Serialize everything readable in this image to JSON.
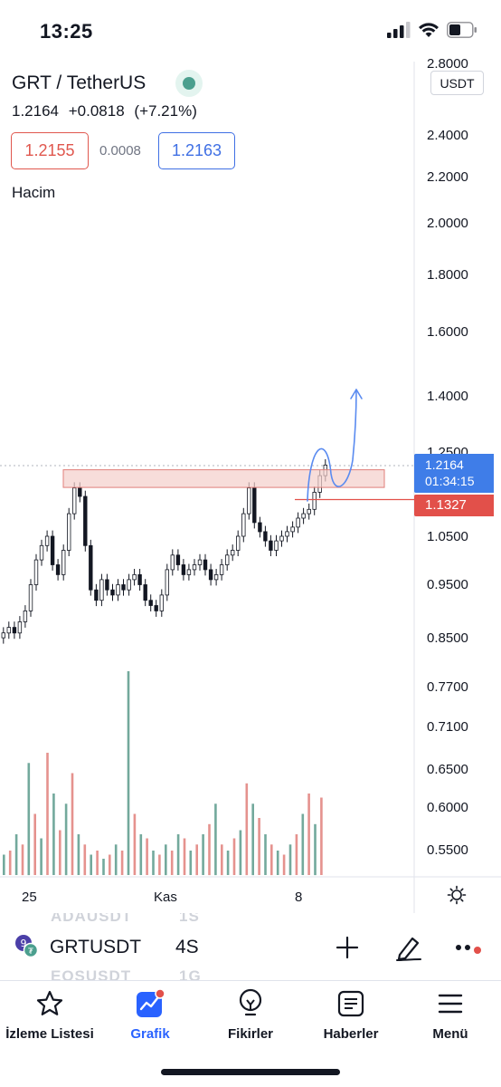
{
  "status_bar": {
    "time": "13:25"
  },
  "header": {
    "symbol_title": "GRT / TetherUS",
    "last_price": "1.2164",
    "change": "+0.0818",
    "change_pct": "(+7.21%)",
    "bid": "1.2155",
    "spread": "0.0008",
    "ask": "1.2163",
    "volume_label": "Hacim"
  },
  "price_axis": {
    "currency": "USDT",
    "top_partial": "2.8000",
    "labels": [
      "2.4000",
      "2.2000",
      "2.0000",
      "1.8000",
      "1.6000",
      "1.4000",
      "1.2500",
      "1.0500",
      "0.9500",
      "0.8500",
      "0.7700",
      "0.7100",
      "0.6500",
      "0.6000",
      "0.5500"
    ],
    "current_price": "1.2164",
    "countdown": "01:34:15",
    "line_price": "1.1327"
  },
  "time_axis": {
    "labels": [
      "25",
      "Kas",
      "8"
    ]
  },
  "colors": {
    "up": "#5b9a8b",
    "down": "#e07f7a",
    "accent": "#2962ff",
    "bid": "#e0574e",
    "ask": "#3f6fe4",
    "drawing": "#5a8bf0",
    "zone": "#f4cfcb"
  },
  "symbol_bar": {
    "ghost_above": "ADAUSDT",
    "ghost_above_interval": "1S",
    "symbol": "GRTUSDT",
    "interval": "4S",
    "ghost_below": "EOSUSDT",
    "ghost_below_interval": "1G",
    "tools": [
      "plus-icon",
      "pen-icon",
      "more-icon"
    ]
  },
  "bottom_nav": {
    "items": [
      {
        "label": "İzleme Listesi",
        "icon": "star-icon"
      },
      {
        "label": "Grafik",
        "icon": "chart-icon",
        "active": true
      },
      {
        "label": "Fikirler",
        "icon": "lightbulb-icon"
      },
      {
        "label": "Haberler",
        "icon": "newspaper-icon"
      },
      {
        "label": "Menü",
        "icon": "menu-icon"
      }
    ]
  },
  "chart_data": {
    "type": "candlestick",
    "title": "",
    "xlabel": "",
    "ylabel": "",
    "y_scale": "log",
    "ylim": [
      0.85,
      2.8
    ],
    "x_ticks": [
      "25",
      "Kas",
      "8"
    ],
    "grid": false,
    "resistance_zone": [
      1.17,
      1.2
    ],
    "support_line": 1.1327,
    "current_price": 1.2164,
    "projection_peak": 1.4,
    "series": [
      {
        "values_close_sample": [
          0.86,
          0.87,
          0.86,
          0.88,
          0.9,
          0.95,
          1.0,
          1.03,
          1.05,
          0.99,
          0.97,
          1.02,
          1.1,
          1.16,
          1.14,
          1.03,
          0.94,
          0.92,
          0.96,
          0.94,
          0.93,
          0.95,
          0.94,
          0.96,
          0.97,
          0.95,
          0.92,
          0.91,
          0.9,
          0.93,
          0.98,
          1.01,
          0.99,
          0.97,
          0.98,
          0.99,
          1.0,
          0.98,
          0.96,
          0.97,
          0.99,
          1.01,
          1.02,
          1.05,
          1.1,
          1.16,
          1.08,
          1.06,
          1.04,
          1.02,
          1.04,
          1.05,
          1.06,
          1.07,
          1.09,
          1.1,
          1.11,
          1.15,
          1.19,
          1.2164
        ]
      }
    ],
    "volume_sample": [
      0.1,
      0.12,
      0.2,
      0.15,
      0.55,
      0.3,
      0.18,
      0.6,
      0.4,
      0.22,
      0.35,
      0.5,
      0.2,
      0.15,
      0.1,
      0.12,
      0.08,
      0.1,
      0.15,
      0.12,
      1.0,
      0.3,
      0.2,
      0.18,
      0.12,
      0.1,
      0.15,
      0.12,
      0.2,
      0.18,
      0.12,
      0.15,
      0.2,
      0.25,
      0.35,
      0.15,
      0.12,
      0.18,
      0.22,
      0.45,
      0.35,
      0.28,
      0.2,
      0.15,
      0.12,
      0.1,
      0.15,
      0.2,
      0.3,
      0.4,
      0.25,
      0.38
    ]
  }
}
